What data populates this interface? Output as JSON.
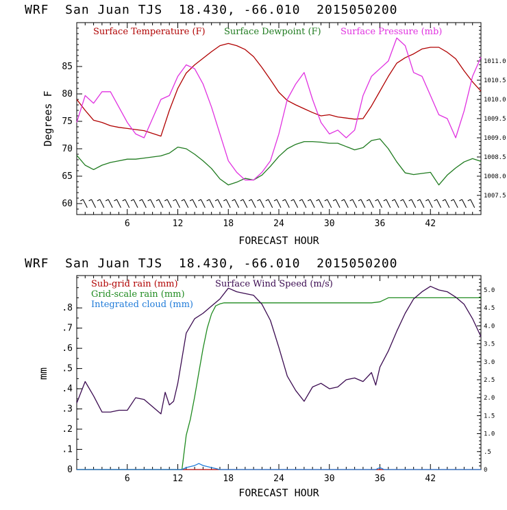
{
  "page": {
    "top_title": "WRF  San Juan TJS  18.430, -66.010  2015050200",
    "bottom_title": "WRF  San Juan TJS  18.430, -66.010  2015050200"
  },
  "colors": {
    "temperature": "#b00000",
    "dewpoint": "#1e7a1e",
    "pressure": "#e030e0",
    "subgrid_rain": "#b00000",
    "gridscale_rain": "#1e8a1e",
    "cloud": "#1e7ad8",
    "wind": "#3a0a50",
    "axis": "#000000"
  },
  "chart_data": [
    {
      "type": "line",
      "id": "top",
      "xlabel": "FORECAST HOUR",
      "ylabel": "Degrees F",
      "xlim": [
        0,
        48
      ],
      "ylim": [
        58,
        93
      ],
      "y2lim": [
        1007.0,
        1012.0
      ],
      "xticks": [
        6,
        12,
        18,
        24,
        30,
        36,
        42
      ],
      "yticks": [
        60,
        65,
        70,
        75,
        80,
        85
      ],
      "y2ticks": [
        1007.5,
        1008.0,
        1008.5,
        1009.0,
        1009.5,
        1010.0,
        1010.5,
        1011.0
      ],
      "y2tick_labels": [
        "1007.5",
        "1008.0",
        "1008.5",
        "1009.0",
        "1009.5",
        "1010.0",
        "1010.5",
        "1011.0"
      ],
      "wind_barbs": "row of barbs along y = 60",
      "series": [
        {
          "name": "Surface Temperature (F)",
          "axis": "left",
          "x": [
            0,
            1,
            2,
            3,
            4,
            5,
            6,
            7,
            8,
            9,
            10,
            11,
            12,
            13,
            14,
            15,
            16,
            17,
            18,
            19,
            20,
            21,
            22,
            23,
            24,
            25,
            26,
            27,
            28,
            29,
            30,
            31,
            32,
            33,
            34,
            35,
            36,
            37,
            38,
            39,
            40,
            41,
            42,
            43,
            44,
            45,
            46,
            47,
            48
          ],
          "values": [
            79,
            77,
            75.2,
            74.8,
            74.2,
            73.9,
            73.7,
            73.5,
            73.3,
            72.8,
            72.3,
            77,
            81,
            83.8,
            85.3,
            86.5,
            87.7,
            88.8,
            89.2,
            88.8,
            88.1,
            86.8,
            84.8,
            82.6,
            80.3,
            78.8,
            78,
            77.3,
            76.6,
            76,
            76.2,
            75.8,
            75.6,
            75.4,
            75.5,
            77.8,
            80.5,
            83.2,
            85.6,
            86.6,
            87.3,
            88.2,
            88.5,
            88.5,
            87.6,
            86.4,
            84.2,
            82.2,
            80.5
          ]
        },
        {
          "name": "Surface Dewpoint (F)",
          "axis": "left",
          "x": [
            0,
            1,
            2,
            3,
            4,
            5,
            6,
            7,
            8,
            9,
            10,
            11,
            12,
            13,
            14,
            15,
            16,
            17,
            18,
            19,
            20,
            21,
            22,
            23,
            24,
            25,
            26,
            27,
            28,
            29,
            30,
            31,
            32,
            33,
            34,
            35,
            36,
            37,
            38,
            39,
            40,
            41,
            42,
            43,
            44,
            45,
            46,
            47,
            48
          ],
          "values": [
            68.8,
            67,
            66.2,
            67,
            67.5,
            67.8,
            68.1,
            68.1,
            68.3,
            68.5,
            68.7,
            69.2,
            70.3,
            70,
            69,
            67.8,
            66.4,
            64.5,
            63.4,
            63.9,
            64.6,
            64.3,
            65.2,
            66.8,
            68.6,
            70,
            70.8,
            71.3,
            71.3,
            71.2,
            71,
            71,
            70.4,
            69.8,
            70.2,
            71.5,
            71.8,
            70,
            67.6,
            65.6,
            65.3,
            65.5,
            65.7,
            63.4,
            65.2,
            66.5,
            67.6,
            68.2,
            67.7
          ]
        },
        {
          "name": "Surface Pressure (mb)",
          "axis": "right",
          "x": [
            0,
            1,
            2,
            3,
            4,
            5,
            6,
            7,
            8,
            9,
            10,
            11,
            12,
            13,
            14,
            15,
            16,
            17,
            18,
            19,
            20,
            21,
            22,
            23,
            24,
            25,
            26,
            27,
            28,
            29,
            30,
            31,
            32,
            33,
            34,
            35,
            36,
            37,
            38,
            39,
            40,
            41,
            42,
            43,
            44,
            45,
            46,
            47,
            48
          ],
          "values": [
            1009.4,
            1010.1,
            1009.9,
            1010.2,
            1010.2,
            1009.8,
            1009.4,
            1009.1,
            1009.0,
            1009.5,
            1010.0,
            1010.1,
            1010.6,
            1010.9,
            1010.8,
            1010.4,
            1009.8,
            1009.1,
            1008.4,
            1008.1,
            1007.9,
            1007.9,
            1008.1,
            1008.4,
            1009.1,
            1010.0,
            1010.4,
            1010.7,
            1010.0,
            1009.4,
            1009.1,
            1009.2,
            1009.0,
            1009.2,
            1010.1,
            1010.6,
            1010.8,
            1011.0,
            1011.6,
            1011.4,
            1010.7,
            1010.6,
            1010.1,
            1009.6,
            1009.5,
            1009.0,
            1009.7,
            1010.6,
            1011.1
          ]
        }
      ]
    },
    {
      "type": "line",
      "id": "bottom",
      "xlabel": "FORECAST HOUR",
      "ylabel": "mm",
      "xlim": [
        0,
        48
      ],
      "ylim": [
        0,
        0.96
      ],
      "y2lim": [
        0,
        5.4
      ],
      "xticks": [
        6,
        12,
        18,
        24,
        30,
        36,
        42
      ],
      "yticks": [
        0,
        0.1,
        0.2,
        0.3,
        0.4,
        0.5,
        0.6,
        0.7,
        0.8
      ],
      "ytick_labels": [
        "0",
        ".1",
        ".2",
        ".3",
        ".4",
        ".5",
        ".6",
        ".7",
        ".8"
      ],
      "y2ticks": [
        0,
        0.5,
        1.0,
        1.5,
        2.0,
        2.5,
        3.0,
        3.5,
        4.0,
        4.5,
        5.0
      ],
      "y2tick_labels": [
        "0",
        ".5",
        "1.0",
        "1.5",
        "2.0",
        "2.5",
        "3.0",
        "3.5",
        "4.0",
        "4.5",
        "5.0"
      ],
      "series": [
        {
          "name": "Sub-grid rain (mm)",
          "axis": "left",
          "x": [
            0,
            48
          ],
          "values": [
            0,
            0
          ]
        },
        {
          "name": "Grid-scale rain (mm)",
          "axis": "left",
          "x": [
            0,
            12.5,
            13,
            13.5,
            14,
            14.5,
            15,
            15.5,
            16,
            16.5,
            17,
            17.5,
            18,
            20,
            25,
            30,
            35,
            36,
            36.5,
            37,
            40,
            45,
            48
          ],
          "values": [
            0,
            0,
            0.17,
            0.25,
            0.36,
            0.48,
            0.6,
            0.7,
            0.77,
            0.81,
            0.82,
            0.825,
            0.825,
            0.825,
            0.825,
            0.825,
            0.825,
            0.83,
            0.84,
            0.85,
            0.85,
            0.85,
            0.85
          ]
        },
        {
          "name": "Integrated cloud (mm)",
          "axis": "left",
          "x": [
            0,
            12.5,
            13,
            13.5,
            14,
            14.5,
            15,
            15.5,
            16,
            16.5,
            17,
            35.5,
            36,
            36.5,
            48
          ],
          "values": [
            0,
            0,
            0.01,
            0.015,
            0.02,
            0.03,
            0.02,
            0.015,
            0.01,
            0.005,
            0,
            0,
            0.01,
            0,
            0
          ]
        },
        {
          "name": "Surface Wind Speed (m/s)",
          "axis": "right",
          "x": [
            0,
            1,
            2,
            3,
            4,
            5,
            6,
            7,
            8,
            9,
            10,
            10.5,
            11,
            11.5,
            12,
            13,
            14,
            15,
            16,
            17,
            18,
            19,
            20,
            21,
            22,
            23,
            24,
            25,
            26,
            27,
            28,
            29,
            30,
            31,
            32,
            33,
            34,
            35,
            35.5,
            36,
            37,
            38,
            39,
            40,
            41,
            42,
            43,
            44,
            45,
            46,
            47,
            48
          ],
          "values": [
            1.85,
            2.45,
            2.05,
            1.6,
            1.6,
            1.65,
            1.65,
            2.0,
            1.95,
            1.75,
            1.55,
            2.15,
            1.8,
            1.9,
            2.4,
            3.8,
            4.2,
            4.35,
            4.55,
            4.75,
            5.05,
            4.95,
            4.9,
            4.85,
            4.6,
            4.15,
            3.4,
            2.6,
            2.2,
            1.9,
            2.3,
            2.4,
            2.25,
            2.3,
            2.5,
            2.55,
            2.45,
            2.7,
            2.35,
            2.85,
            3.3,
            3.85,
            4.35,
            4.75,
            4.95,
            5.1,
            5.0,
            4.95,
            4.8,
            4.6,
            4.2,
            3.7
          ]
        }
      ]
    }
  ]
}
